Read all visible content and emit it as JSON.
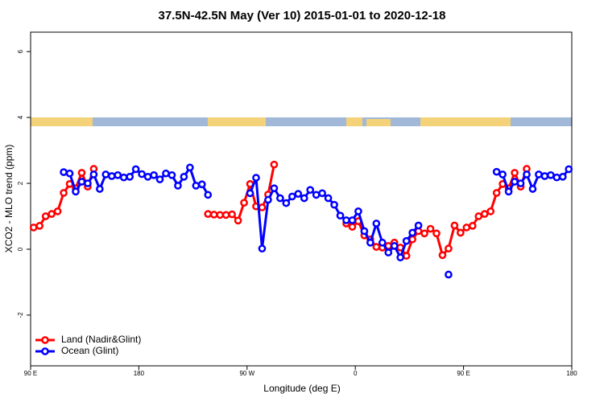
{
  "chart_data": {
    "type": "line",
    "title": "37.5N-42.5N May (Ver 10)   2015-01-01 to 2020-12-18",
    "x_label": "Longitude (deg E)",
    "y_label": "XCO2 - MLO trend (ppm)",
    "x": [
      92.5,
      97.5,
      102.5,
      107.5,
      112.5,
      117.5,
      122.5,
      127.5,
      132.5,
      137.5,
      142.5,
      147.5,
      152.5,
      157.5,
      162.5,
      167.5,
      172.5,
      177.5,
      182.5,
      187.5,
      192.5,
      197.5,
      202.5,
      207.5,
      212.5,
      217.5,
      222.5,
      227.5,
      232.5,
      237.5,
      242.5,
      247.5,
      252.5,
      257.5,
      262.5,
      267.5,
      272.5,
      277.5,
      282.5,
      287.5,
      292.5,
      297.5,
      302.5,
      307.5,
      312.5,
      317.5,
      322.5,
      327.5,
      332.5,
      337.5,
      342.5,
      347.5,
      352.5,
      357.5,
      362.5,
      367.5,
      372.5,
      377.5,
      382.5,
      387.5,
      392.5,
      397.5,
      402.5,
      407.5,
      412.5,
      417.5,
      422.5,
      427.5,
      432.5,
      437.5,
      442.5,
      447.5,
      452.5,
      457.5,
      462.5,
      467.5,
      472.5,
      477.5,
      482.5,
      487.5,
      492.5,
      497.5,
      502.5,
      507.5,
      512.5,
      517.5,
      522.5,
      527.5,
      532.5,
      537.5
    ],
    "series": [
      {
        "name": "Land (Nadir&Glint)",
        "color": "#ff0000",
        "values": [
          0.66,
          0.71,
          1.0,
          1.07,
          1.15,
          1.71,
          1.98,
          1.85,
          2.32,
          1.9,
          2.44,
          null,
          null,
          null,
          null,
          null,
          null,
          null,
          null,
          null,
          null,
          null,
          null,
          null,
          null,
          null,
          null,
          null,
          null,
          1.07,
          1.05,
          1.04,
          1.04,
          1.06,
          0.87,
          1.41,
          1.98,
          1.3,
          1.27,
          1.66,
          2.57,
          null,
          null,
          null,
          null,
          null,
          null,
          null,
          null,
          null,
          null,
          null,
          0.78,
          0.68,
          0.85,
          0.42,
          0.3,
          0.07,
          0.05,
          0.1,
          0.2,
          0.05,
          -0.2,
          0.3,
          0.55,
          0.48,
          0.62,
          0.48,
          -0.18,
          0.02,
          0.72,
          0.5,
          0.66,
          0.71,
          1.0,
          1.07,
          1.15,
          1.71,
          1.98,
          1.85,
          2.32,
          1.9,
          2.44,
          null,
          null,
          null,
          null,
          null,
          null,
          null
        ]
      },
      {
        "name": "Ocean (Glint)",
        "color": "#0000ff",
        "values": [
          null,
          null,
          null,
          null,
          null,
          2.34,
          2.3,
          1.75,
          2.05,
          2.0,
          2.27,
          1.83,
          2.27,
          2.22,
          2.25,
          2.18,
          2.2,
          2.43,
          2.28,
          2.2,
          2.25,
          2.12,
          2.3,
          2.25,
          1.93,
          2.2,
          2.48,
          1.93,
          1.97,
          1.65,
          null,
          null,
          null,
          null,
          null,
          null,
          1.7,
          2.17,
          0.02,
          1.5,
          1.85,
          1.55,
          1.4,
          1.6,
          1.68,
          1.55,
          1.8,
          1.65,
          1.7,
          1.55,
          1.35,
          1.02,
          0.88,
          0.88,
          1.15,
          0.55,
          0.2,
          0.78,
          0.2,
          -0.1,
          0.1,
          -0.25,
          0.25,
          0.5,
          0.72,
          null,
          null,
          null,
          null,
          -0.77,
          null,
          null,
          null,
          null,
          null,
          null,
          null,
          2.35,
          2.27,
          1.75,
          2.05,
          2.0,
          2.27,
          1.83,
          2.27,
          2.22,
          2.25,
          2.18,
          2.2,
          2.43
        ]
      }
    ],
    "xlim": [
      90,
      540
    ],
    "ylim": [
      -3.54,
      6.59
    ],
    "xticks": [
      {
        "value": 90,
        "label": "90 E"
      },
      180,
      {
        "value": 270,
        "label": "90 W"
      },
      {
        "value": 360,
        "label": "0"
      },
      {
        "value": 450,
        "label": "90 E"
      },
      {
        "value": 540,
        "label": "180"
      }
    ],
    "yticks": [
      -2,
      0,
      2,
      4,
      6
    ],
    "legend": "bottomleft"
  }
}
